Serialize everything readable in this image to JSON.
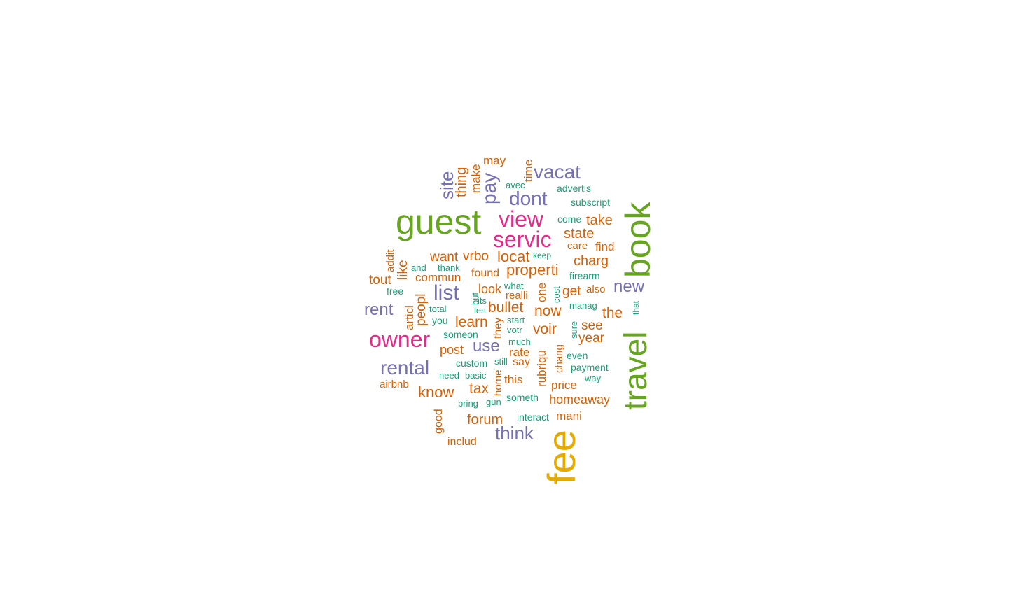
{
  "palette": {
    "green": "#66a61e",
    "orange": "#d95f02",
    "purple": "#7570b3",
    "pink": "#e7298a",
    "teal": "#1b9e77",
    "gold": "#e6ab02"
  },
  "words": [
    {
      "text": "guest",
      "color": "green"
    },
    {
      "text": "book",
      "color": "green"
    },
    {
      "text": "travel",
      "color": "green"
    },
    {
      "text": "fee",
      "color": "gold"
    },
    {
      "text": "view",
      "color": "pink"
    },
    {
      "text": "servic",
      "color": "pink"
    },
    {
      "text": "owner",
      "color": "pink"
    },
    {
      "text": "vacat",
      "color": "purple"
    },
    {
      "text": "dont",
      "color": "purple"
    },
    {
      "text": "site",
      "color": "purple"
    },
    {
      "text": "pay",
      "color": "purple"
    },
    {
      "text": "list",
      "color": "purple"
    },
    {
      "text": "rental",
      "color": "purple"
    },
    {
      "text": "rent",
      "color": "purple"
    },
    {
      "text": "new",
      "color": "purple"
    },
    {
      "text": "use",
      "color": "purple"
    },
    {
      "text": "think",
      "color": "purple"
    },
    {
      "text": "may",
      "color": "orange"
    },
    {
      "text": "time",
      "color": "orange"
    },
    {
      "text": "thing",
      "color": "orange"
    },
    {
      "text": "make",
      "color": "orange"
    },
    {
      "text": "take",
      "color": "orange"
    },
    {
      "text": "state",
      "color": "orange"
    },
    {
      "text": "find",
      "color": "orange"
    },
    {
      "text": "care",
      "color": "orange"
    },
    {
      "text": "charg",
      "color": "orange"
    },
    {
      "text": "properti",
      "color": "orange"
    },
    {
      "text": "locat",
      "color": "orange"
    },
    {
      "text": "want",
      "color": "orange"
    },
    {
      "text": "vrbo",
      "color": "orange"
    },
    {
      "text": "addit",
      "color": "orange"
    },
    {
      "text": "like",
      "color": "orange"
    },
    {
      "text": "tout",
      "color": "orange"
    },
    {
      "text": "commun",
      "color": "orange"
    },
    {
      "text": "found",
      "color": "orange"
    },
    {
      "text": "look",
      "color": "orange"
    },
    {
      "text": "get",
      "color": "orange"
    },
    {
      "text": "also",
      "color": "orange"
    },
    {
      "text": "the",
      "color": "orange"
    },
    {
      "text": "now",
      "color": "orange"
    },
    {
      "text": "bullet",
      "color": "orange"
    },
    {
      "text": "articl",
      "color": "orange"
    },
    {
      "text": "peopl",
      "color": "orange"
    },
    {
      "text": "learn",
      "color": "orange"
    },
    {
      "text": "voir",
      "color": "orange"
    },
    {
      "text": "see",
      "color": "orange"
    },
    {
      "text": "year",
      "color": "orange"
    },
    {
      "text": "post",
      "color": "orange"
    },
    {
      "text": "rate",
      "color": "orange"
    },
    {
      "text": "say",
      "color": "orange"
    },
    {
      "text": "this",
      "color": "orange"
    },
    {
      "text": "know",
      "color": "orange"
    },
    {
      "text": "tax",
      "color": "orange"
    },
    {
      "text": "airbnb",
      "color": "orange"
    },
    {
      "text": "price",
      "color": "orange"
    },
    {
      "text": "homeaway",
      "color": "orange"
    },
    {
      "text": "forum",
      "color": "orange"
    },
    {
      "text": "mani",
      "color": "orange"
    },
    {
      "text": "includ",
      "color": "orange"
    },
    {
      "text": "good",
      "color": "orange"
    },
    {
      "text": "one",
      "color": "orange"
    },
    {
      "text": "realli",
      "color": "orange"
    },
    {
      "text": "they",
      "color": "orange"
    },
    {
      "text": "rubriqu",
      "color": "orange"
    },
    {
      "text": "chang",
      "color": "orange"
    },
    {
      "text": "home",
      "color": "orange"
    },
    {
      "text": "avec",
      "color": "teal"
    },
    {
      "text": "advertis",
      "color": "teal"
    },
    {
      "text": "subscript",
      "color": "teal"
    },
    {
      "text": "come",
      "color": "teal"
    },
    {
      "text": "keep",
      "color": "teal"
    },
    {
      "text": "and",
      "color": "teal"
    },
    {
      "text": "thank",
      "color": "teal"
    },
    {
      "text": "firearm",
      "color": "teal"
    },
    {
      "text": "free",
      "color": "teal"
    },
    {
      "text": "what",
      "color": "teal"
    },
    {
      "text": "total",
      "color": "teal"
    },
    {
      "text": "les",
      "color": "teal"
    },
    {
      "text": "its",
      "color": "teal"
    },
    {
      "text": "but",
      "color": "teal"
    },
    {
      "text": "cost",
      "color": "teal"
    },
    {
      "text": "manag",
      "color": "teal"
    },
    {
      "text": "that",
      "color": "teal"
    },
    {
      "text": "you",
      "color": "teal"
    },
    {
      "text": "start",
      "color": "teal"
    },
    {
      "text": "votr",
      "color": "teal"
    },
    {
      "text": "sure",
      "color": "teal"
    },
    {
      "text": "someon",
      "color": "teal"
    },
    {
      "text": "much",
      "color": "teal"
    },
    {
      "text": "even",
      "color": "teal"
    },
    {
      "text": "custom",
      "color": "teal"
    },
    {
      "text": "still",
      "color": "teal"
    },
    {
      "text": "payment",
      "color": "teal"
    },
    {
      "text": "need",
      "color": "teal"
    },
    {
      "text": "basic",
      "color": "teal"
    },
    {
      "text": "way",
      "color": "teal"
    },
    {
      "text": "bring",
      "color": "teal"
    },
    {
      "text": "gun",
      "color": "teal"
    },
    {
      "text": "someth",
      "color": "teal"
    },
    {
      "text": "interact",
      "color": "teal"
    }
  ]
}
